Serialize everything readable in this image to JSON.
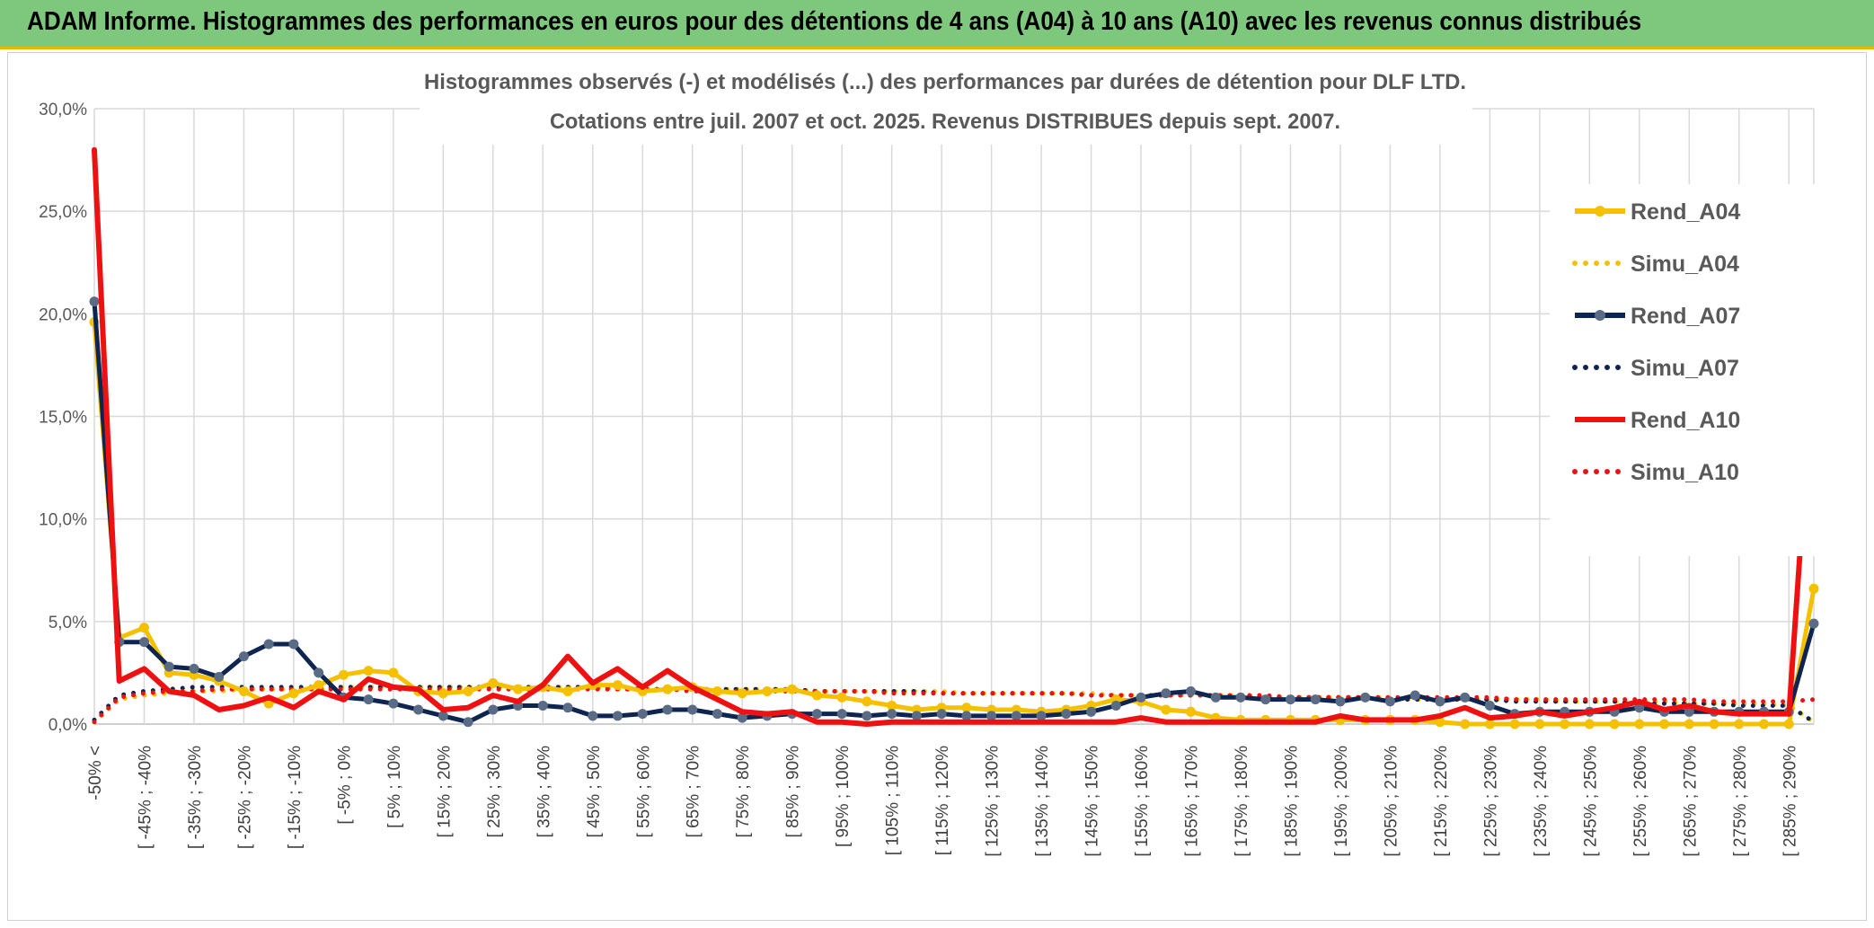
{
  "header": {
    "title": "ADAM Informe. Histogrammes des performances en euros pour des détentions de 4 ans (A04) à 10 ans (A10) avec les revenus connus distribués"
  },
  "chart_data": {
    "type": "line",
    "title": "Histogrammes observés (-) et modélisés (...) des performances par durées de détention pour DLF LTD.",
    "subtitle": "Cotations entre juil. 2007 et oct. 2025. Revenus DISTRIBUES depuis sept. 2007.",
    "xlabel": "",
    "ylabel": "",
    "ylim": [
      0,
      30
    ],
    "yticks": [
      "0,0%",
      "5,0%",
      "10,0%",
      "15,0%",
      "20,0%",
      "25,0%",
      "30,0%"
    ],
    "grid": true,
    "legend_position": "right",
    "x_tick_labels": [
      "-50% <",
      "[ -45% ; -40%",
      "[ -35% ; -30%",
      "[ -25% ; -20%",
      "[ -15% ; -10%",
      "[ -5% ; 0%",
      "[ 5% ; 10%",
      "[ 15% ; 20%",
      "[ 25% ; 30%",
      "[ 35% ; 40%",
      "[ 45% ; 50%",
      "[ 55% ; 60%",
      "[ 65% ; 70%",
      "[ 75% ; 80%",
      "[ 85% ; 90%",
      "[ 95% ; 100%",
      "[ 105% ; 110%",
      "[ 115% ; 120%",
      "[ 125% ; 130%",
      "[ 135% ; 140%",
      "[ 145% ; 150%",
      "[ 155% ; 160%",
      "[ 165% ; 170%",
      "[ 175% ; 180%",
      "[ 185% ; 190%",
      "[ 195% ; 200%",
      "[ 205% ; 210%",
      "[ 215% ; 220%",
      "[ 225% ; 230%",
      "[ 235% ; 240%",
      "[ 245% ; 250%",
      "[ 255% ; 260%",
      "[ 265% ; 270%",
      "[ 275% ; 280%",
      "[ 285% ; 290%"
    ],
    "series": [
      {
        "name": "Rend_A04",
        "style": "solid",
        "color": "#f5c000",
        "values": [
          19.6,
          4.2,
          4.7,
          2.5,
          2.4,
          2.1,
          1.6,
          1.0,
          1.5,
          1.9,
          2.4,
          2.6,
          2.5,
          1.6,
          1.5,
          1.6,
          2.0,
          1.7,
          1.8,
          1.6,
          1.9,
          1.9,
          1.6,
          1.7,
          1.8,
          1.6,
          1.5,
          1.6,
          1.7,
          1.4,
          1.3,
          1.1,
          0.9,
          0.7,
          0.8,
          0.8,
          0.7,
          0.7,
          0.6,
          0.7,
          0.9,
          1.2,
          1.1,
          0.7,
          0.6,
          0.3,
          0.2,
          0.2,
          0.2,
          0.2,
          0.2,
          0.2,
          0.2,
          0.2,
          0.1,
          0.0,
          0.0,
          0.0,
          0.0,
          0.0,
          0.0,
          0.0,
          0.0,
          0.0,
          0.0,
          0.0,
          0.0,
          0.0,
          0.0,
          6.6
        ]
      },
      {
        "name": "Simu_A04",
        "style": "dotted",
        "color": "#f5c000",
        "values": [
          0.1,
          1.2,
          1.4,
          1.5,
          1.6,
          1.6,
          1.7,
          1.7,
          1.7,
          1.7,
          1.8,
          1.8,
          1.8,
          1.8,
          1.8,
          1.8,
          1.8,
          1.8,
          1.8,
          1.8,
          1.8,
          1.7,
          1.7,
          1.7,
          1.7,
          1.7,
          1.7,
          1.7,
          1.7,
          1.6,
          1.6,
          1.6,
          1.6,
          1.6,
          1.6,
          1.5,
          1.5,
          1.5,
          1.5,
          1.5,
          1.5,
          1.4,
          1.4,
          1.4,
          1.4,
          1.4,
          1.4,
          1.3,
          1.3,
          1.3,
          1.3,
          1.3,
          1.3,
          1.2,
          1.2,
          1.2,
          1.2,
          1.2,
          1.2,
          1.1,
          1.1,
          1.1,
          1.1,
          1.1,
          1.0,
          1.0,
          1.0,
          1.0,
          0.9,
          0.1
        ]
      },
      {
        "name": "Rend_A07",
        "style": "solid",
        "color": "#0e2451",
        "values": [
          20.6,
          4.0,
          4.0,
          2.8,
          2.7,
          2.3,
          3.3,
          3.9,
          3.9,
          2.5,
          1.3,
          1.2,
          1.0,
          0.7,
          0.4,
          0.1,
          0.7,
          0.9,
          0.9,
          0.8,
          0.4,
          0.4,
          0.5,
          0.7,
          0.7,
          0.5,
          0.3,
          0.4,
          0.5,
          0.5,
          0.5,
          0.4,
          0.5,
          0.4,
          0.5,
          0.4,
          0.4,
          0.4,
          0.4,
          0.5,
          0.6,
          0.9,
          1.3,
          1.5,
          1.6,
          1.3,
          1.3,
          1.2,
          1.2,
          1.2,
          1.1,
          1.3,
          1.1,
          1.4,
          1.1,
          1.3,
          0.9,
          0.5,
          0.6,
          0.6,
          0.6,
          0.6,
          0.8,
          0.6,
          0.6,
          0.6,
          0.6,
          0.6,
          0.6,
          4.9
        ]
      },
      {
        "name": "Simu_A07",
        "style": "dotted",
        "color": "#0e2451",
        "values": [
          0.2,
          1.4,
          1.6,
          1.7,
          1.8,
          1.8,
          1.8,
          1.8,
          1.8,
          1.8,
          1.8,
          1.8,
          1.8,
          1.8,
          1.8,
          1.8,
          1.8,
          1.8,
          1.8,
          1.8,
          1.8,
          1.8,
          1.7,
          1.7,
          1.7,
          1.7,
          1.7,
          1.7,
          1.7,
          1.6,
          1.6,
          1.6,
          1.6,
          1.6,
          1.5,
          1.5,
          1.5,
          1.5,
          1.5,
          1.5,
          1.4,
          1.4,
          1.4,
          1.4,
          1.4,
          1.4,
          1.3,
          1.3,
          1.3,
          1.3,
          1.3,
          1.3,
          1.2,
          1.2,
          1.2,
          1.2,
          1.2,
          1.1,
          1.1,
          1.1,
          1.1,
          1.1,
          1.0,
          1.0,
          1.0,
          1.0,
          0.9,
          0.9,
          0.9,
          0.1
        ]
      },
      {
        "name": "Rend_A10",
        "style": "solid",
        "color": "#ee1111",
        "values": [
          28.0,
          2.1,
          2.7,
          1.6,
          1.4,
          0.7,
          0.9,
          1.3,
          0.8,
          1.6,
          1.2,
          2.2,
          1.8,
          1.7,
          0.7,
          0.8,
          1.4,
          1.1,
          1.9,
          3.3,
          2.0,
          2.7,
          1.8,
          2.6,
          1.8,
          1.2,
          0.6,
          0.5,
          0.6,
          0.1,
          0.1,
          0.0,
          0.1,
          0.1,
          0.1,
          0.1,
          0.1,
          0.1,
          0.1,
          0.1,
          0.1,
          0.1,
          0.3,
          0.1,
          0.1,
          0.1,
          0.1,
          0.1,
          0.1,
          0.1,
          0.4,
          0.2,
          0.2,
          0.2,
          0.4,
          0.8,
          0.3,
          0.4,
          0.6,
          0.4,
          0.6,
          0.8,
          1.1,
          0.7,
          0.9,
          0.6,
          0.5,
          0.5,
          0.5,
          18.2
        ]
      },
      {
        "name": "Simu_A10",
        "style": "dotted",
        "color": "#ee1111",
        "values": [
          0.1,
          1.3,
          1.5,
          1.6,
          1.6,
          1.7,
          1.7,
          1.7,
          1.7,
          1.7,
          1.7,
          1.7,
          1.7,
          1.7,
          1.7,
          1.7,
          1.7,
          1.7,
          1.7,
          1.7,
          1.7,
          1.7,
          1.7,
          1.7,
          1.6,
          1.6,
          1.6,
          1.6,
          1.6,
          1.6,
          1.6,
          1.6,
          1.5,
          1.5,
          1.5,
          1.5,
          1.5,
          1.5,
          1.5,
          1.5,
          1.4,
          1.4,
          1.4,
          1.4,
          1.4,
          1.4,
          1.4,
          1.4,
          1.3,
          1.3,
          1.3,
          1.3,
          1.3,
          1.3,
          1.3,
          1.3,
          1.3,
          1.2,
          1.2,
          1.2,
          1.2,
          1.2,
          1.2,
          1.2,
          1.2,
          1.1,
          1.1,
          1.1,
          1.1,
          1.2
        ]
      }
    ]
  }
}
